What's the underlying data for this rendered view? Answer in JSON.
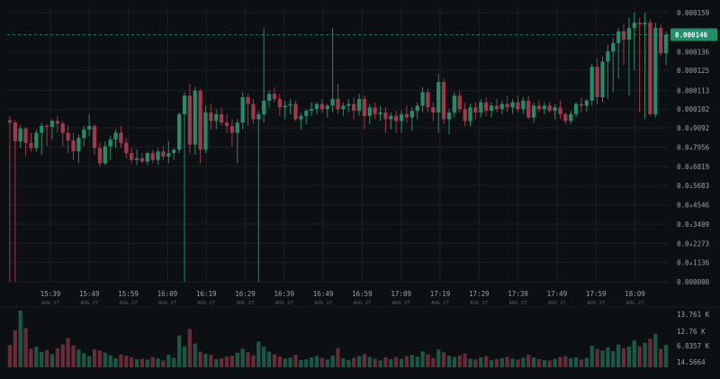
{
  "colors": {
    "background": "#0d1013",
    "grid": "#1a1f24",
    "up": "#1e8f68",
    "down": "#a3384d",
    "up_volume": "#165a45",
    "down_volume": "#6b2a37",
    "axis_text": "#9aa0a6",
    "time_sub_text": "#5a6066",
    "price_tag_bg": "#1e8f68",
    "price_line": "#1e8f68"
  },
  "chart_data": {
    "type": "candlestick",
    "title": "",
    "xlabel": "",
    "ylabel": "",
    "grid": true,
    "y_axis_position": "right",
    "ylim": [
      0.0,
      0.000159
    ],
    "y_ticks": [
      {
        "value": 0.000159,
        "label": "0.000159"
      },
      {
        "value": 0.000136,
        "label": "0.000136"
      },
      {
        "value": 0.000125,
        "label": "0.000125"
      },
      {
        "value": 0.000113,
        "label": "0.000113"
      },
      {
        "value": 0.000102,
        "label": "0.000102"
      },
      {
        "value": 9.092e-05,
        "label": "0.0₄9092"
      },
      {
        "value": 7.956e-05,
        "label": "0.0₄7956"
      },
      {
        "value": 6.819e-05,
        "label": "0.0₄6819"
      },
      {
        "value": 5.683e-05,
        "label": "0.0₄5683"
      },
      {
        "value": 4.546e-05,
        "label": "0.0₄4546"
      },
      {
        "value": 3.409e-05,
        "label": "0.0₄3409"
      },
      {
        "value": 2.273e-05,
        "label": "0.0₄2273"
      },
      {
        "value": 1.136e-05,
        "label": "0.0₄1136"
      },
      {
        "value": 0.0,
        "label": "0.000000"
      }
    ],
    "x_ticks": [
      {
        "time": "15:39",
        "date": "AUG 27"
      },
      {
        "time": "15:49",
        "date": "AUG 27"
      },
      {
        "time": "15:59",
        "date": "AUG 27"
      },
      {
        "time": "16:09",
        "date": "AUG 27"
      },
      {
        "time": "16:19",
        "date": "AUG 27"
      },
      {
        "time": "16:29",
        "date": "AUG 27"
      },
      {
        "time": "16:39",
        "date": "AUG 27"
      },
      {
        "time": "16:49",
        "date": "AUG 27"
      },
      {
        "time": "16:59",
        "date": "AUG 27"
      },
      {
        "time": "17:09",
        "date": "AUG 27"
      },
      {
        "time": "17:19",
        "date": "AUG 27"
      },
      {
        "time": "17:29",
        "date": "AUG 27"
      },
      {
        "time": "17:39",
        "date": "AUG 27"
      },
      {
        "time": "17:49",
        "date": "AUG 27"
      },
      {
        "time": "17:59",
        "date": "AUG 27"
      },
      {
        "time": "18:09",
        "date": "AUG 27"
      }
    ],
    "current_price": {
      "value": 0.000146,
      "label": "0.000146"
    },
    "volume_axis_ticks": [
      "13.761 K",
      "12.76 K",
      "6.8357 K",
      "14.5664"
    ],
    "candles": [
      {
        "o": 9.55e-05,
        "h": 9.8e-05,
        "l": 0.0,
        "c": 9.4e-05,
        "v": 5.2
      },
      {
        "o": 9.4e-05,
        "h": 9.55e-05,
        "l": 0.0,
        "c": 8.3e-05,
        "v": 8.6
      },
      {
        "o": 8.3e-05,
        "h": 9.25e-05,
        "l": 7.9e-05,
        "c": 9.05e-05,
        "v": 13.2
      },
      {
        "o": 9.05e-05,
        "h": 9.15e-05,
        "l": 7.4e-05,
        "c": 8.2e-05,
        "v": 9.1
      },
      {
        "o": 8.2e-05,
        "h": 8.8e-05,
        "l": 7.7e-05,
        "c": 7.9e-05,
        "v": 4.3
      },
      {
        "o": 7.9e-05,
        "h": 9e-05,
        "l": 7.7e-05,
        "c": 8.8e-05,
        "v": 4.8
      },
      {
        "o": 8.8e-05,
        "h": 9.4e-05,
        "l": 7.5e-05,
        "c": 9.2e-05,
        "v": 3.6
      },
      {
        "o": 9.2e-05,
        "h": 9.3e-05,
        "l": 8e-05,
        "c": 9.15e-05,
        "v": 4.0
      },
      {
        "o": 9.15e-05,
        "h": 9.6e-05,
        "l": 8.4e-05,
        "c": 9.5e-05,
        "v": 3.1
      },
      {
        "o": 9.5e-05,
        "h": 9.8e-05,
        "l": 8.8e-05,
        "c": 9.35e-05,
        "v": 4.4
      },
      {
        "o": 9.35e-05,
        "h": 9.5e-05,
        "l": 8e-05,
        "c": 8.8e-05,
        "v": 5.3
      },
      {
        "o": 8.8e-05,
        "h": 9.25e-05,
        "l": 7.6e-05,
        "c": 8.35e-05,
        "v": 6.8
      },
      {
        "o": 8.35e-05,
        "h": 8.8e-05,
        "l": 7.2e-05,
        "c": 7.7e-05,
        "v": 5.1
      },
      {
        "o": 7.7e-05,
        "h": 8.7e-05,
        "l": 7e-05,
        "c": 8.5e-05,
        "v": 4.1
      },
      {
        "o": 8.5e-05,
        "h": 9.2e-05,
        "l": 8e-05,
        "c": 9e-05,
        "v": 3.3
      },
      {
        "o": 9e-05,
        "h": 9.9e-05,
        "l": 8.6e-05,
        "c": 9.2e-05,
        "v": 2.6
      },
      {
        "o": 9.2e-05,
        "h": 9.3e-05,
        "l": 7.5e-05,
        "c": 7.9e-05,
        "v": 4.2
      },
      {
        "o": 7.9e-05,
        "h": 8.2e-05,
        "l": 6.8e-05,
        "c": 7e-05,
        "v": 3.9
      },
      {
        "o": 7e-05,
        "h": 8.3e-05,
        "l": 6.9e-05,
        "c": 8e-05,
        "v": 3.4
      },
      {
        "o": 8e-05,
        "h": 8.6e-05,
        "l": 7.2e-05,
        "c": 8.4e-05,
        "v": 2.8
      },
      {
        "o": 8.4e-05,
        "h": 9e-05,
        "l": 7.9e-05,
        "c": 8.8e-05,
        "v": 2.1
      },
      {
        "o": 8.8e-05,
        "h": 9.2e-05,
        "l": 7.9e-05,
        "c": 8.2e-05,
        "v": 3.0
      },
      {
        "o": 8.2e-05,
        "h": 8.5e-05,
        "l": 7.3e-05,
        "c": 7.6e-05,
        "v": 2.7
      },
      {
        "o": 7.6e-05,
        "h": 7.9e-05,
        "l": 7e-05,
        "c": 7.2e-05,
        "v": 2.3
      },
      {
        "o": 7.2e-05,
        "h": 7.8e-05,
        "l": 6.9e-05,
        "c": 7.3e-05,
        "v": 1.9
      },
      {
        "o": 7.3e-05,
        "h": 7.6e-05,
        "l": 7e-05,
        "c": 7.1e-05,
        "v": 2.0
      },
      {
        "o": 7.1e-05,
        "h": 7.7e-05,
        "l": 6.9e-05,
        "c": 7.6e-05,
        "v": 1.8
      },
      {
        "o": 7.6e-05,
        "h": 7.8e-05,
        "l": 7e-05,
        "c": 7.2e-05,
        "v": 2.4
      },
      {
        "o": 7.2e-05,
        "h": 7.9e-05,
        "l": 6.9e-05,
        "c": 7.7e-05,
        "v": 2.1
      },
      {
        "o": 7.7e-05,
        "h": 8e-05,
        "l": 7.2e-05,
        "c": 7.4e-05,
        "v": 1.6
      },
      {
        "o": 7.4e-05,
        "h": 8.3e-05,
        "l": 7e-05,
        "c": 7.6e-05,
        "v": 2.9
      },
      {
        "o": 7.6e-05,
        "h": 7.9e-05,
        "l": 7.2e-05,
        "c": 7.8e-05,
        "v": 2.2
      },
      {
        "o": 7.8e-05,
        "h": 0.0001,
        "l": 7.6e-05,
        "c": 9.9e-05,
        "v": 7.4
      },
      {
        "o": 9.9e-05,
        "h": 0.000112,
        "l": 0.0,
        "c": 0.00011,
        "v": 4.9
      },
      {
        "o": 0.00011,
        "h": 0.000117,
        "l": 7.6e-05,
        "c": 8.1e-05,
        "v": 8.9
      },
      {
        "o": 8.1e-05,
        "h": 0.000115,
        "l": 7.5e-05,
        "c": 0.000113,
        "v": 5.5
      },
      {
        "o": 0.000113,
        "h": 0.000114,
        "l": 7e-05,
        "c": 7.8e-05,
        "v": 3.6
      },
      {
        "o": 7.8e-05,
        "h": 0.000104,
        "l": 7.6e-05,
        "c": 0.0001,
        "v": 3.2
      },
      {
        "o": 0.0001,
        "h": 0.000105,
        "l": 9e-05,
        "c": 9.5e-05,
        "v": 2.9
      },
      {
        "o": 9.5e-05,
        "h": 0.000102,
        "l": 9e-05,
        "c": 9.9e-05,
        "v": 1.9
      },
      {
        "o": 9.9e-05,
        "h": 0.000103,
        "l": 9.2e-05,
        "c": 9.4e-05,
        "v": 2.1
      },
      {
        "o": 9.4e-05,
        "h": 9.9e-05,
        "l": 8.8e-05,
        "c": 9.2e-05,
        "v": 2.5
      },
      {
        "o": 9.2e-05,
        "h": 9.6e-05,
        "l": 8e-05,
        "c": 8.8e-05,
        "v": 2.7
      },
      {
        "o": 8.8e-05,
        "h": 9.6e-05,
        "l": 7e-05,
        "c": 9.4e-05,
        "v": 3.4
      },
      {
        "o": 9.4e-05,
        "h": 0.000112,
        "l": 9e-05,
        "c": 0.000109,
        "v": 4.3
      },
      {
        "o": 0.000109,
        "h": 0.000111,
        "l": 9.2e-05,
        "c": 0.000105,
        "v": 3.5
      },
      {
        "o": 0.000105,
        "h": 0.000108,
        "l": 9.3e-05,
        "c": 9.6e-05,
        "v": 2.8
      },
      {
        "o": 9.6e-05,
        "h": 0.000101,
        "l": 0.0,
        "c": 9.9e-05,
        "v": 6.0
      },
      {
        "o": 9.9e-05,
        "h": 0.00015,
        "l": 9.4e-05,
        "c": 0.000107,
        "v": 4.8
      },
      {
        "o": 0.000107,
        "h": 0.000113,
        "l": 0.000103,
        "c": 0.000111,
        "v": 3.6
      },
      {
        "o": 0.000111,
        "h": 0.000115,
        "l": 0.000106,
        "c": 0.000108,
        "v": 3.0
      },
      {
        "o": 0.000108,
        "h": 0.000111,
        "l": 9.8e-05,
        "c": 0.000103,
        "v": 2.5
      },
      {
        "o": 0.000103,
        "h": 0.000107,
        "l": 9.6e-05,
        "c": 0.000104,
        "v": 2.0
      },
      {
        "o": 0.000104,
        "h": 0.000108,
        "l": 9.9e-05,
        "c": 0.000105,
        "v": 2.2
      },
      {
        "o": 0.000105,
        "h": 0.000107,
        "l": 9.5e-05,
        "c": 9.6e-05,
        "v": 2.9
      },
      {
        "o": 9.6e-05,
        "h": 0.0001,
        "l": 9e-05,
        "c": 9.8e-05,
        "v": 1.7
      },
      {
        "o": 9.8e-05,
        "h": 0.000102,
        "l": 9.3e-05,
        "c": 0.000101,
        "v": 1.9
      },
      {
        "o": 0.000101,
        "h": 0.000106,
        "l": 9.8e-05,
        "c": 0.000102,
        "v": 2.3
      },
      {
        "o": 0.000102,
        "h": 0.000106,
        "l": 9.9e-05,
        "c": 0.000105,
        "v": 2.6
      },
      {
        "o": 0.000105,
        "h": 0.000108,
        "l": 0.0001,
        "c": 0.000102,
        "v": 2.2
      },
      {
        "o": 0.000102,
        "h": 0.000105,
        "l": 9.7e-05,
        "c": 0.000104,
        "v": 1.8
      },
      {
        "o": 0.000104,
        "h": 0.00015,
        "l": 0.0001,
        "c": 0.000108,
        "v": 2.7
      },
      {
        "o": 0.000108,
        "h": 0.000117,
        "l": 9.9e-05,
        "c": 0.000102,
        "v": 4.4
      },
      {
        "o": 0.000102,
        "h": 0.000106,
        "l": 9.8e-05,
        "c": 0.000104,
        "v": 2.1
      },
      {
        "o": 0.000104,
        "h": 0.000108,
        "l": 0.0001,
        "c": 0.000105,
        "v": 1.7
      },
      {
        "o": 0.000105,
        "h": 0.000109,
        "l": 9.6e-05,
        "c": 0.000101,
        "v": 2.2
      },
      {
        "o": 0.000101,
        "h": 0.000111,
        "l": 9.8e-05,
        "c": 0.000108,
        "v": 2.6
      },
      {
        "o": 0.000108,
        "h": 0.00011,
        "l": 9e-05,
        "c": 9.8e-05,
        "v": 3.1
      },
      {
        "o": 9.8e-05,
        "h": 0.000105,
        "l": 9.3e-05,
        "c": 0.000103,
        "v": 2.4
      },
      {
        "o": 0.000103,
        "h": 0.000106,
        "l": 9.6e-05,
        "c": 9.9e-05,
        "v": 2.0
      },
      {
        "o": 9.9e-05,
        "h": 0.000104,
        "l": 9.5e-05,
        "c": 0.0001,
        "v": 1.6
      },
      {
        "o": 0.0001,
        "h": 0.000103,
        "l": 8.8e-05,
        "c": 9.6e-05,
        "v": 2.3
      },
      {
        "o": 9.6e-05,
        "h": 0.0001,
        "l": 9e-05,
        "c": 9.8e-05,
        "v": 1.9
      },
      {
        "o": 9.8e-05,
        "h": 0.000101,
        "l": 8.8e-05,
        "c": 9.5e-05,
        "v": 2.4
      },
      {
        "o": 9.5e-05,
        "h": 0.000101,
        "l": 8.8e-05,
        "c": 9.9e-05,
        "v": 2.0
      },
      {
        "o": 9.9e-05,
        "h": 0.000104,
        "l": 9.4e-05,
        "c": 9.7e-05,
        "v": 2.6
      },
      {
        "o": 9.7e-05,
        "h": 0.000103,
        "l": 8.9e-05,
        "c": 0.000101,
        "v": 2.9
      },
      {
        "o": 0.000101,
        "h": 0.000106,
        "l": 9.6e-05,
        "c": 0.000104,
        "v": 2.5
      },
      {
        "o": 0.000104,
        "h": 0.000115,
        "l": 0.0001,
        "c": 0.000112,
        "v": 3.7
      },
      {
        "o": 0.000112,
        "h": 0.000114,
        "l": 0.0001,
        "c": 0.000103,
        "v": 3.0
      },
      {
        "o": 0.000103,
        "h": 0.000106,
        "l": 9.5e-05,
        "c": 0.0001,
        "v": 2.2
      },
      {
        "o": 0.0001,
        "h": 0.000123,
        "l": 8.8e-05,
        "c": 0.000118,
        "v": 4.1
      },
      {
        "o": 0.000118,
        "h": 0.00012,
        "l": 9.3e-05,
        "c": 9.6e-05,
        "v": 3.5
      },
      {
        "o": 9.6e-05,
        "h": 0.000102,
        "l": 8.7e-05,
        "c": 0.0001,
        "v": 2.7
      },
      {
        "o": 0.0001,
        "h": 0.000112,
        "l": 9.7e-05,
        "c": 0.00011,
        "v": 2.4
      },
      {
        "o": 0.00011,
        "h": 0.000113,
        "l": 0.0001,
        "c": 0.000102,
        "v": 2.8
      },
      {
        "o": 0.000102,
        "h": 0.000106,
        "l": 9.2e-05,
        "c": 9.5e-05,
        "v": 3.2
      },
      {
        "o": 9.5e-05,
        "h": 0.000105,
        "l": 9.2e-05,
        "c": 0.000103,
        "v": 2.0
      },
      {
        "o": 0.000103,
        "h": 0.000106,
        "l": 9.6e-05,
        "c": 0.0001,
        "v": 1.8
      },
      {
        "o": 0.0001,
        "h": 0.000108,
        "l": 9.7e-05,
        "c": 0.000106,
        "v": 2.3
      },
      {
        "o": 0.000106,
        "h": 0.000109,
        "l": 9.8e-05,
        "c": 0.000101,
        "v": 2.6
      },
      {
        "o": 0.000101,
        "h": 0.000106,
        "l": 9.7e-05,
        "c": 0.000104,
        "v": 1.7
      },
      {
        "o": 0.000104,
        "h": 0.000108,
        "l": 0.0001,
        "c": 0.000102,
        "v": 1.9
      },
      {
        "o": 0.000102,
        "h": 0.000107,
        "l": 9.9e-05,
        "c": 0.000105,
        "v": 2.1
      },
      {
        "o": 0.000105,
        "h": 0.00011,
        "l": 0.0001,
        "c": 0.000103,
        "v": 2.4
      },
      {
        "o": 0.000103,
        "h": 0.000108,
        "l": 9.9e-05,
        "c": 0.000106,
        "v": 2.0
      },
      {
        "o": 0.000106,
        "h": 0.00011,
        "l": 0.0001,
        "c": 0.000102,
        "v": 1.8
      },
      {
        "o": 0.000102,
        "h": 0.000109,
        "l": 9.9e-05,
        "c": 0.000107,
        "v": 2.2
      },
      {
        "o": 0.000107,
        "h": 0.00011,
        "l": 9.6e-05,
        "c": 9.7e-05,
        "v": 2.9
      },
      {
        "o": 9.7e-05,
        "h": 0.000106,
        "l": 9.4e-05,
        "c": 0.000104,
        "v": 2.3
      },
      {
        "o": 0.000104,
        "h": 0.000107,
        "l": 0.0001,
        "c": 0.000102,
        "v": 1.9
      },
      {
        "o": 0.000102,
        "h": 0.000106,
        "l": 9.9e-05,
        "c": 0.000104,
        "v": 1.7
      },
      {
        "o": 0.000104,
        "h": 0.000106,
        "l": 0.0001,
        "c": 0.000101,
        "v": 1.6
      },
      {
        "o": 0.000101,
        "h": 0.000105,
        "l": 9.6e-05,
        "c": 0.000103,
        "v": 2.0
      },
      {
        "o": 0.000103,
        "h": 0.000107,
        "l": 9.6e-05,
        "c": 9.9e-05,
        "v": 2.4
      },
      {
        "o": 9.9e-05,
        "h": 0.0001,
        "l": 9.3e-05,
        "c": 9.5e-05,
        "v": 2.6
      },
      {
        "o": 9.5e-05,
        "h": 0.000101,
        "l": 9.3e-05,
        "c": 9.9e-05,
        "v": 2.1
      },
      {
        "o": 9.9e-05,
        "h": 0.000106,
        "l": 9.7e-05,
        "c": 0.000105,
        "v": 2.3
      },
      {
        "o": 0.000105,
        "h": 0.000109,
        "l": 0.0001,
        "c": 0.000104,
        "v": 1.8
      },
      {
        "o": 0.000104,
        "h": 0.000108,
        "l": 0.0001,
        "c": 0.000107,
        "v": 2.2
      },
      {
        "o": 0.000107,
        "h": 0.000129,
        "l": 0.000104,
        "c": 0.000127,
        "v": 5.0
      },
      {
        "o": 0.000127,
        "h": 0.000132,
        "l": 0.000105,
        "c": 0.000109,
        "v": 4.3
      },
      {
        "o": 0.000109,
        "h": 0.000133,
        "l": 0.000106,
        "c": 0.00013,
        "v": 3.9
      },
      {
        "o": 0.00013,
        "h": 0.00014,
        "l": 0.000108,
        "c": 0.000136,
        "v": 4.6
      },
      {
        "o": 0.000136,
        "h": 0.000144,
        "l": 0.000112,
        "c": 0.000141,
        "v": 3.8
      },
      {
        "o": 0.000141,
        "h": 0.00015,
        "l": 0.00012,
        "c": 0.000148,
        "v": 5.3
      },
      {
        "o": 0.000148,
        "h": 0.000152,
        "l": 0.000128,
        "c": 0.000143,
        "v": 4.4
      },
      {
        "o": 0.000143,
        "h": 0.000156,
        "l": 0.00011,
        "c": 0.00015,
        "v": 4.8
      },
      {
        "o": 0.00015,
        "h": 0.000159,
        "l": 0.000125,
        "c": 0.000153,
        "v": 6.3
      },
      {
        "o": 0.000153,
        "h": 0.000156,
        "l": 0.0001,
        "c": 0.000152,
        "v": 4.9
      },
      {
        "o": 0.000152,
        "h": 0.000159,
        "l": 9.6e-05,
        "c": 0.000153,
        "v": 5.7
      },
      {
        "o": 0.000153,
        "h": 0.000155,
        "l": 9.8e-05,
        "c": 9.9e-05,
        "v": 6.7
      },
      {
        "o": 9.9e-05,
        "h": 0.000153,
        "l": 9.7e-05,
        "c": 0.00015,
        "v": 7.8
      },
      {
        "o": 0.00015,
        "h": 0.000152,
        "l": 0.000133,
        "c": 0.000135,
        "v": 4.3
      },
      {
        "o": 0.000135,
        "h": 0.000148,
        "l": 0.000128,
        "c": 0.000146,
        "v": 5.2
      }
    ]
  }
}
